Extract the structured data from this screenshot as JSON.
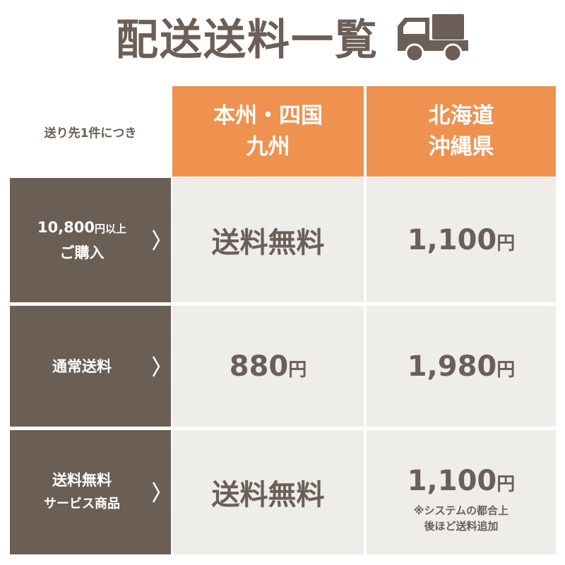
{
  "title": "配送送料一覧",
  "icon": "truck-icon",
  "colors": {
    "brown": "#6b5e55",
    "orange": "#ef914f",
    "cell": "#eeedea"
  },
  "table": {
    "corner": "送り先1件につき",
    "columns": [
      {
        "line1": "本州・四国",
        "line2": "九州"
      },
      {
        "line1": "北海道",
        "line2": "沖縄県"
      }
    ],
    "rows": [
      {
        "label1": "10,800",
        "label1_unit": "円以上",
        "label2": "ご購入",
        "values": [
          {
            "text": "送料無料"
          },
          {
            "num": "1,100",
            "unit": "円"
          }
        ]
      },
      {
        "label1": "通常送料",
        "values": [
          {
            "num": "880",
            "unit": "円"
          },
          {
            "num": "1,980",
            "unit": "円"
          }
        ]
      },
      {
        "label1": "送料無料",
        "label2": "サービス商品",
        "values": [
          {
            "text": "送料無料"
          },
          {
            "num": "1,100",
            "unit": "円",
            "note1": "※システムの都合上",
            "note2": "後ほど送料追加"
          }
        ]
      }
    ]
  }
}
